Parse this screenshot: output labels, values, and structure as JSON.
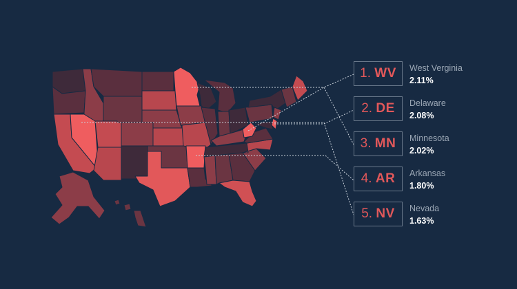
{
  "rankings": [
    {
      "rank": "1.",
      "abbr": "WV",
      "name": "West Verginia",
      "value": "2.11%"
    },
    {
      "rank": "2.",
      "abbr": "DE",
      "name": "Delaware",
      "value": "2.08%"
    },
    {
      "rank": "3.",
      "abbr": "MN",
      "name": "Minnesota",
      "value": "2.02%"
    },
    {
      "rank": "4.",
      "abbr": "AR",
      "name": "Arkansas",
      "value": "1.80%"
    },
    {
      "rank": "5.",
      "abbr": "NV",
      "name": "Nevada",
      "value": "1.63%"
    }
  ],
  "colors": {
    "background": "#172a42",
    "accent": "#e2585a",
    "state_dark": "#3e2a3a",
    "state_mid": "#8c3d48",
    "state_light": "#e2585a",
    "leader_line": "#c9d1da"
  }
}
